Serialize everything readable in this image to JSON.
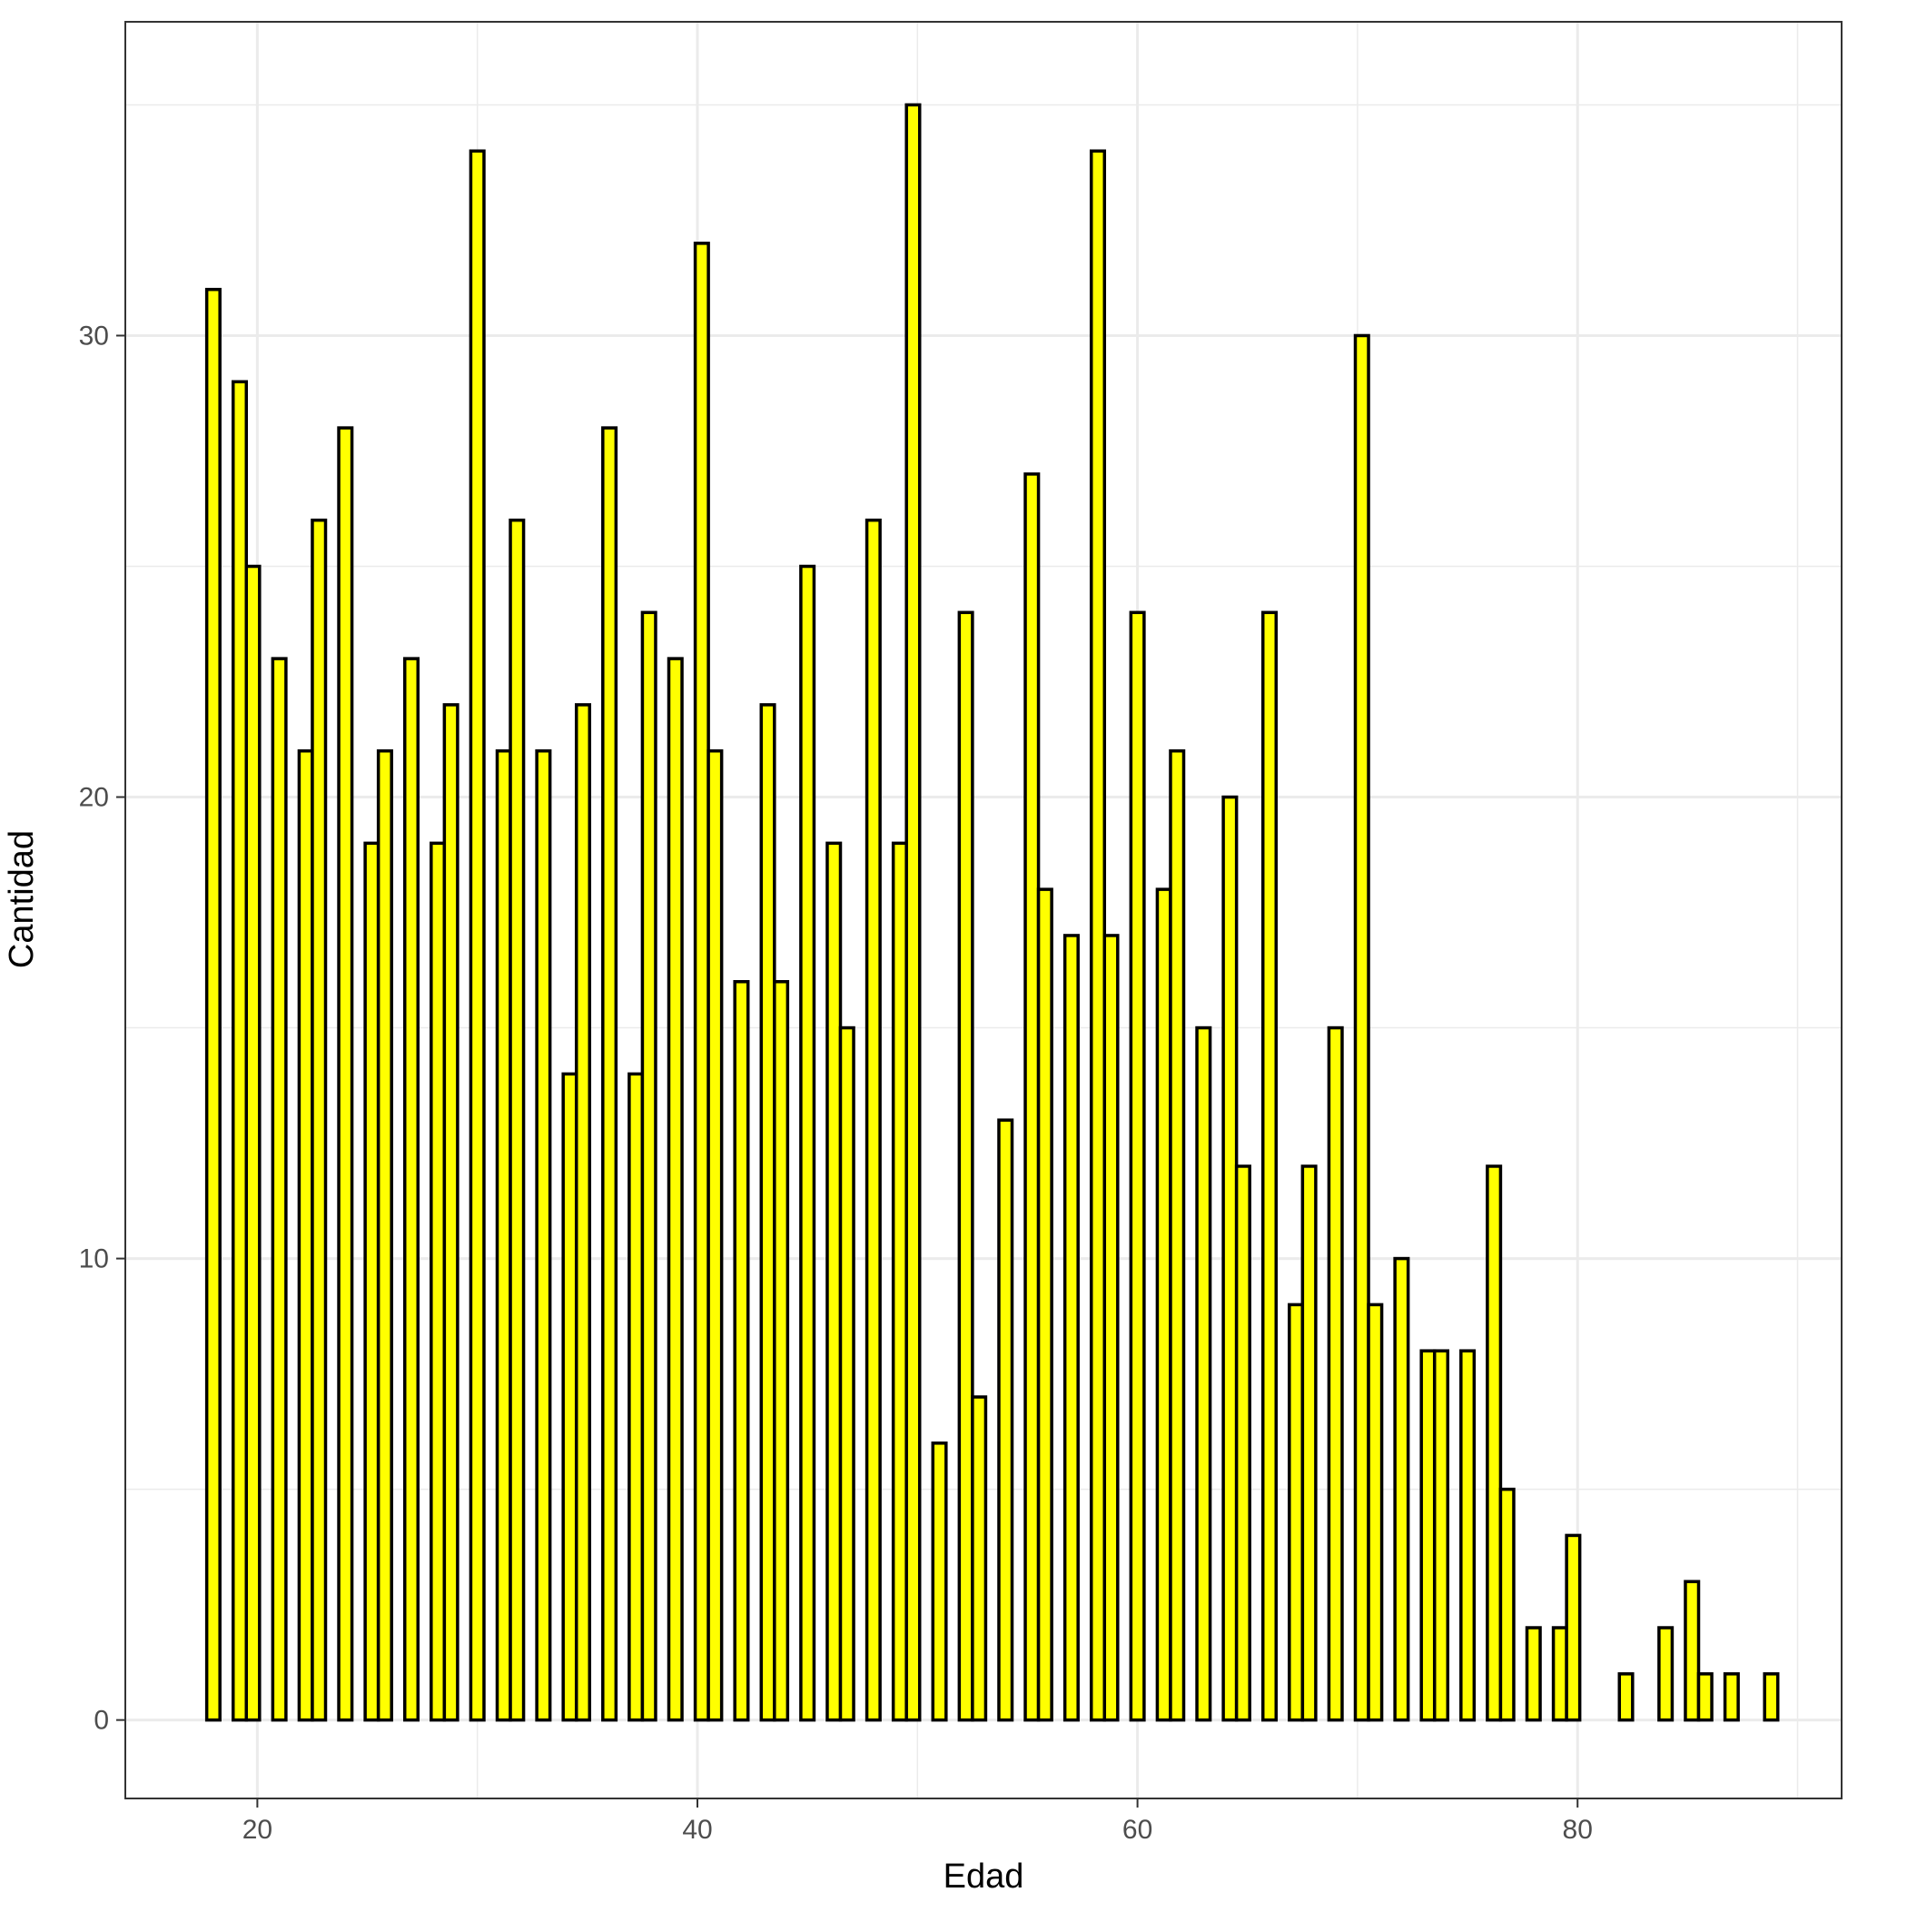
{
  "chart_data": {
    "type": "bar",
    "xlabel": "Edad",
    "ylabel": "Cantidad",
    "xlim": [
      14,
      92
    ],
    "ylim": [
      -1.7,
      36.8
    ],
    "x_ticks": [
      20,
      40,
      60,
      80
    ],
    "y_ticks": [
      0,
      10,
      20,
      30
    ],
    "grid": true,
    "legend": "none",
    "bar_fill": "#ffff00",
    "bar_outline": "#000000",
    "bin_width": 0.6,
    "x": [
      18,
      19.2,
      19.8,
      21,
      22.2,
      22.8,
      24,
      25.2,
      25.8,
      27,
      28.2,
      28.8,
      30,
      31.2,
      31.8,
      33,
      34.2,
      34.8,
      36,
      37.2,
      37.8,
      39,
      40.2,
      40.8,
      42,
      43.2,
      43.8,
      45,
      46.2,
      46.8,
      48,
      49.2,
      49.8,
      51,
      52.2,
      52.8,
      54,
      55.2,
      55.8,
      57,
      58.2,
      58.8,
      60,
      61.2,
      61.8,
      63,
      64.2,
      64.8,
      66,
      67.2,
      67.8,
      69,
      70.2,
      70.8,
      72,
      73.2,
      73.8,
      75,
      76.2,
      76.8,
      78,
      79.2,
      79.8,
      81,
      82.2,
      82.8,
      84,
      85.2,
      85.8,
      87,
      88.2,
      88.8
    ],
    "values": [
      31,
      29,
      25,
      23,
      21,
      26,
      28,
      19,
      21,
      23,
      19,
      22,
      34,
      21,
      26,
      21,
      14,
      22,
      28,
      14,
      24,
      23,
      32,
      21,
      16,
      22,
      16,
      25,
      19,
      15,
      26,
      19,
      35,
      6,
      24,
      7,
      13,
      27,
      18,
      17,
      34,
      17,
      24,
      18,
      21,
      15,
      20,
      12,
      24,
      9,
      12,
      15,
      30,
      9,
      10,
      8,
      8,
      8,
      12,
      5,
      2,
      2,
      4,
      0,
      1,
      0,
      2,
      3,
      1,
      1,
      0,
      1
    ]
  }
}
